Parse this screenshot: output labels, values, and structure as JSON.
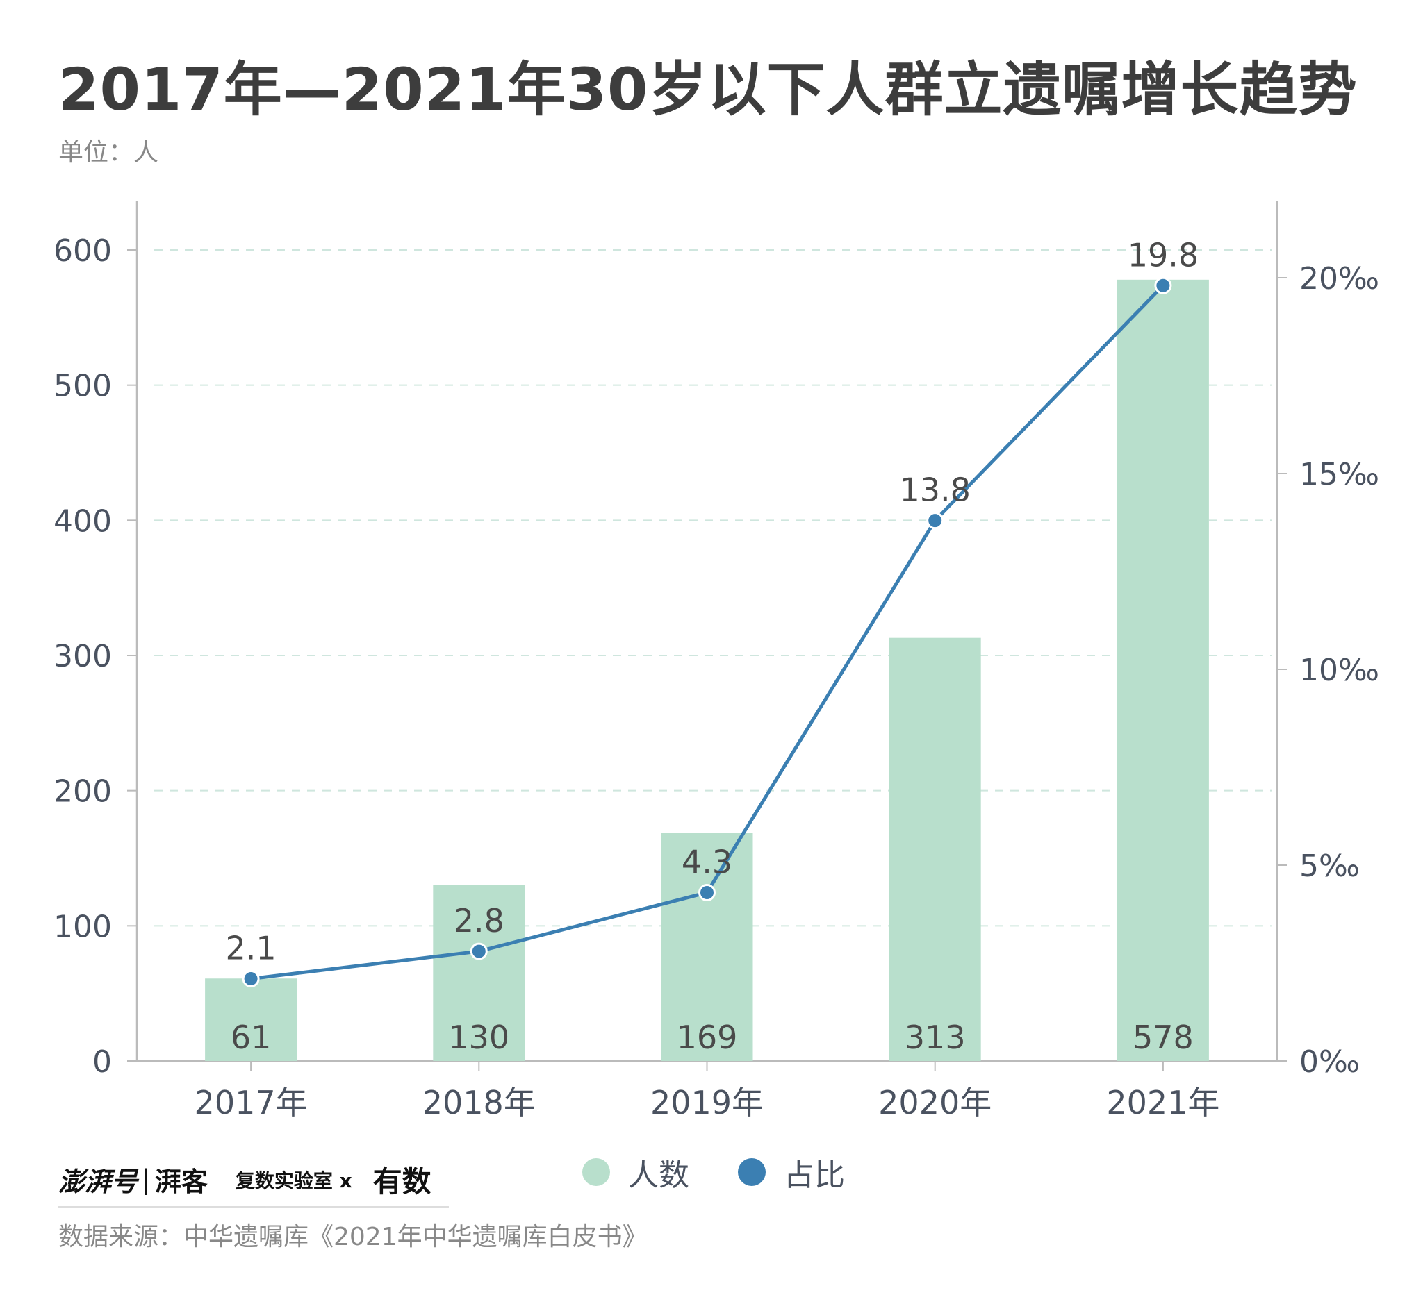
{
  "header": {
    "title": "2017年—2021年30岁以下人群立遗嘱增长趋势",
    "unit": "单位：人"
  },
  "legend": {
    "items": [
      {
        "label": "人数",
        "color": "#b8dfcc"
      },
      {
        "label": "占比",
        "color": "#3b7fb2"
      }
    ]
  },
  "footer": {
    "brand_primary": "澎湃号",
    "brand_separator": "|",
    "brand_secondary": "湃客",
    "brand_lab": "复数实验室 x",
    "brand_partner": "有数",
    "source": "数据来源：中华遗嘱库《2021年中华遗嘱库白皮书》"
  },
  "colors": {
    "bar": "#b8dfcc",
    "line": "#3b7fb2",
    "grid": "#cfe6de",
    "axis": "#bbbbbb"
  },
  "chart_data": {
    "type": "bar",
    "title": "2017年—2021年30岁以下人群立遗嘱增长趋势",
    "categories": [
      "2017年",
      "2018年",
      "2019年",
      "2020年",
      "2021年"
    ],
    "series": [
      {
        "name": "人数",
        "type": "bar",
        "axis": "left",
        "values": [
          61,
          130,
          169,
          313,
          578
        ],
        "labels": [
          "61",
          "130",
          "169",
          "313",
          "578"
        ]
      },
      {
        "name": "占比",
        "type": "line",
        "axis": "right",
        "values": [
          2.1,
          2.8,
          4.3,
          13.8,
          19.8
        ],
        "labels": [
          "2.1",
          "2.8",
          "4.3",
          "13.8",
          "19.8"
        ]
      }
    ],
    "ylim": [
      0,
      600
    ],
    "yticks": [
      0,
      100,
      200,
      300,
      400,
      500,
      600
    ],
    "ytick_labels": [
      "0",
      "100",
      "200",
      "300",
      "400",
      "500",
      "600"
    ],
    "y2lim": [
      0,
      20.7
    ],
    "y2ticks": [
      0,
      5,
      10,
      15,
      20
    ],
    "y2tick_labels": [
      "0‰",
      "5‰",
      "10‰",
      "15‰",
      "20‰"
    ],
    "ylabel": "单位：人",
    "grid": true,
    "legend": "bottom-center"
  }
}
